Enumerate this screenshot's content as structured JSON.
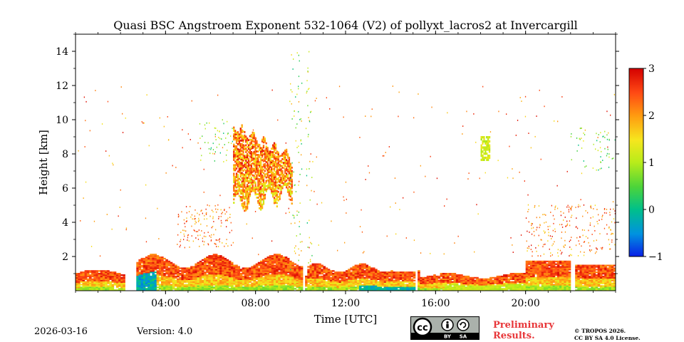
{
  "chart_data": {
    "type": "heatmap",
    "title": "Quasi BSC Angstroem Exponent 532-1064 (V2) of pollyxt_lacros2 at Invercargill",
    "xlabel": "Time [UTC]",
    "ylabel": "Height [km]",
    "xlim_hours": [
      0,
      24
    ],
    "ylim_km": [
      0,
      15
    ],
    "x_ticks": [
      {
        "value": 4,
        "label": "04:00"
      },
      {
        "value": 8,
        "label": "08:00"
      },
      {
        "value": 12,
        "label": "12:00"
      },
      {
        "value": 16,
        "label": "16:00"
      },
      {
        "value": 20,
        "label": "20:00"
      }
    ],
    "y_ticks": [
      {
        "value": 2,
        "label": "2"
      },
      {
        "value": 4,
        "label": "4"
      },
      {
        "value": 6,
        "label": "6"
      },
      {
        "value": 8,
        "label": "8"
      },
      {
        "value": 10,
        "label": "10"
      },
      {
        "value": 12,
        "label": "12"
      },
      {
        "value": 14,
        "label": "14"
      }
    ],
    "colorbar": {
      "vmin": -1,
      "vmax": 3,
      "ticks": [
        {
          "value": -1,
          "label": "−1"
        },
        {
          "value": 0,
          "label": "0"
        },
        {
          "value": 1,
          "label": "1"
        },
        {
          "value": 2,
          "label": "2"
        },
        {
          "value": 3,
          "label": "3"
        }
      ],
      "colormap": [
        "#0a1fe6",
        "#0092e0",
        "#00c08a",
        "#4cd43a",
        "#b8ec1a",
        "#f6e61e",
        "#ff9a10",
        "#ff4a14",
        "#d40000"
      ]
    },
    "data_gaps_hours": [
      [
        2.25,
        2.7
      ],
      [
        10.05,
        10.22
      ],
      [
        15.12,
        15.2
      ],
      [
        18.55,
        18.62
      ],
      [
        22.05,
        22.2
      ]
    ],
    "regions": [
      {
        "name": "boundary layer top",
        "t0": 0,
        "t1": 24,
        "h0": 0.7,
        "h1": 1.8,
        "value": 2.4
      },
      {
        "name": "boundary layer middle",
        "t0": 0,
        "t1": 24,
        "h0": 0.35,
        "h1": 1.0,
        "value": 1.6
      },
      {
        "name": "near-surface",
        "t0": 0,
        "t1": 24,
        "h0": 0,
        "h1": 0.4,
        "value": 0.9
      },
      {
        "name": "cirrus cloud",
        "t0": 7.0,
        "t1": 9.6,
        "h0": 5.0,
        "h1": 10.0,
        "value": 1.8
      },
      {
        "name": "cloud fall streak",
        "t0": 18.0,
        "t1": 18.4,
        "h0": 7.6,
        "h1": 9.0,
        "value": 1.0
      },
      {
        "name": "scattered aerosol",
        "t0": 20.0,
        "t1": 24,
        "h0": 2.0,
        "h1": 5.0,
        "value": 2.2
      }
    ]
  },
  "footer": {
    "date": "2026-03-16",
    "version": "Version: 4.0",
    "badge_cc": "cc",
    "badge_by": "BY",
    "badge_sa": "SA",
    "preliminary_line1": "Preliminary",
    "preliminary_line2": "Results.",
    "copyright_line1": "© TROPOS 2026.",
    "copyright_line2": "CC BY SA 4.0 License."
  }
}
